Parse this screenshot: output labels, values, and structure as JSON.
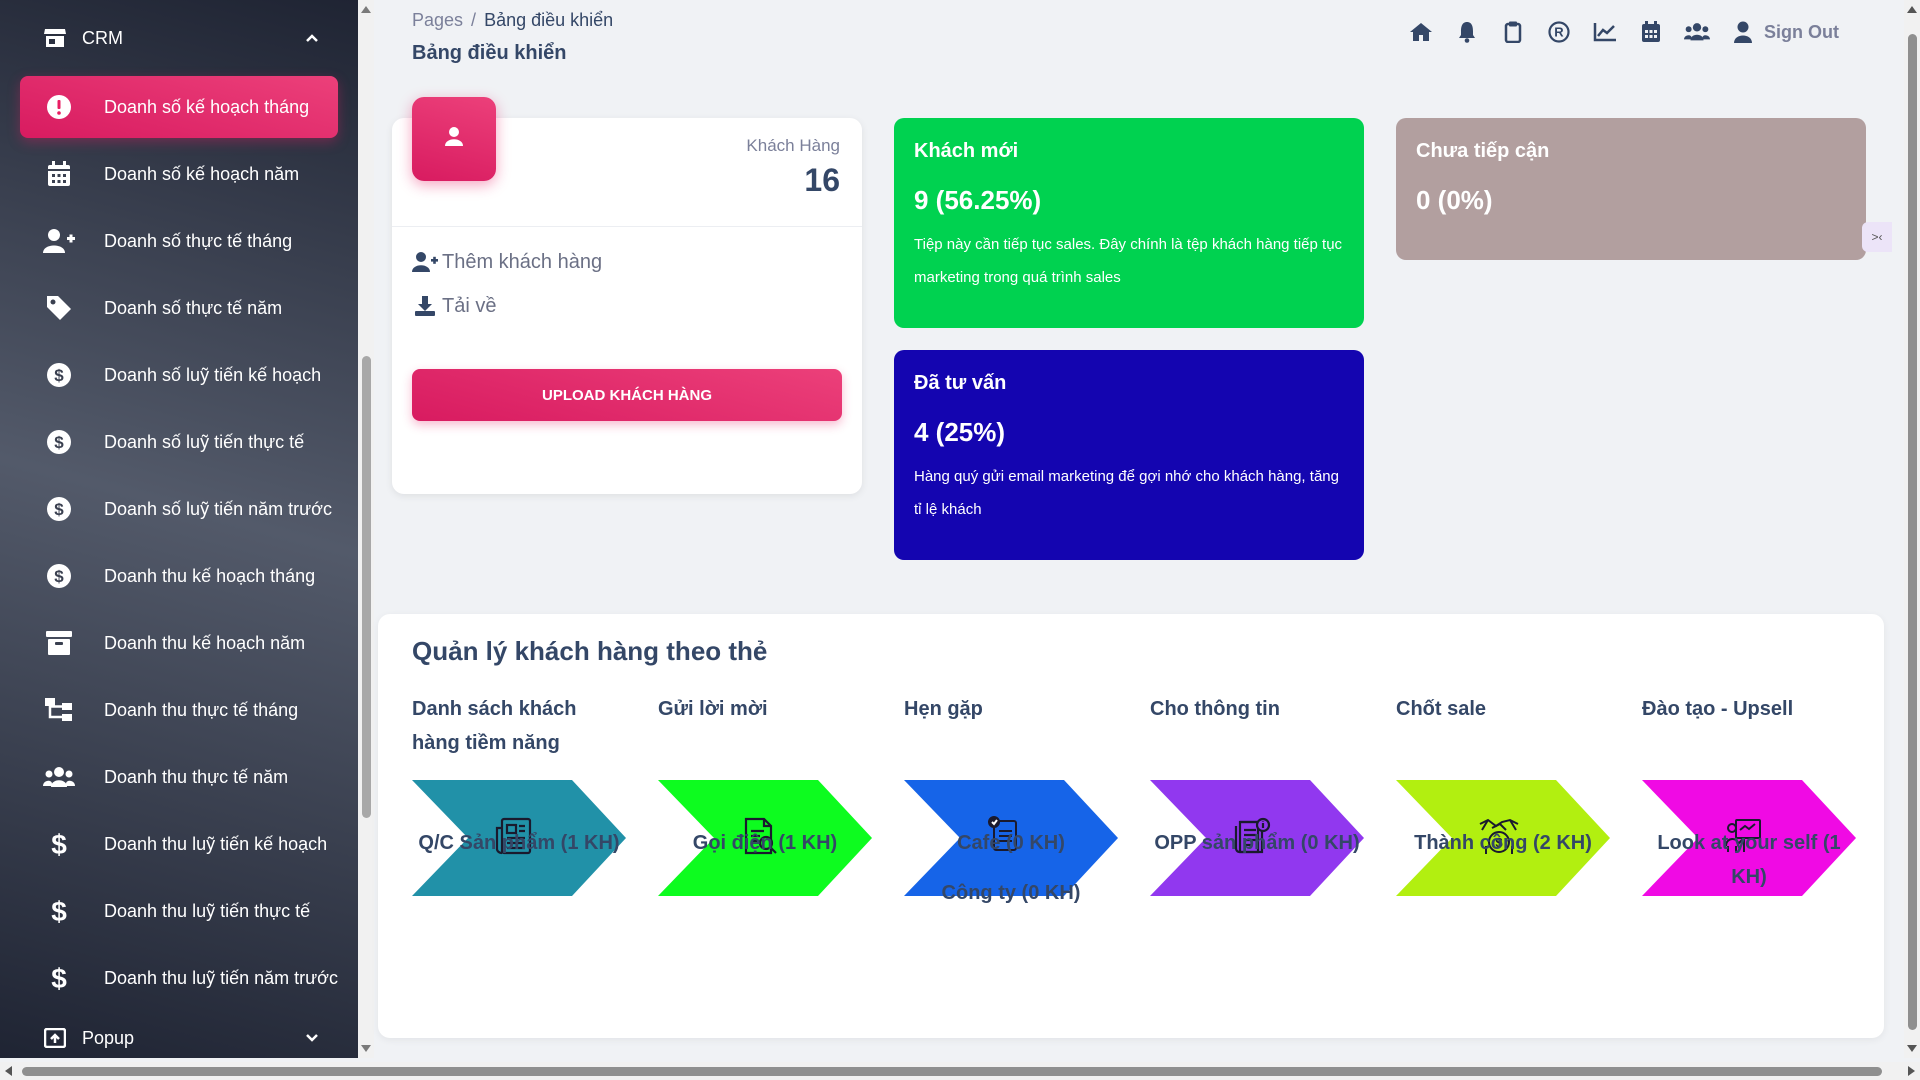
{
  "sidebar": {
    "group_crm": "CRM",
    "group_popup": "Popup",
    "items": [
      {
        "label": "Doanh số kế hoạch tháng",
        "icon": "alert-circle-icon"
      },
      {
        "label": "Doanh số kế hoạch năm",
        "icon": "calendar-icon"
      },
      {
        "label": "Doanh số thực tế tháng",
        "icon": "user-plus-icon"
      },
      {
        "label": "Doanh số thực tế năm",
        "icon": "tag-icon"
      },
      {
        "label": "Doanh số luỹ tiến kế hoạch",
        "icon": "dollar-circle-icon"
      },
      {
        "label": "Doanh số luỹ tiến thực tế",
        "icon": "dollar-circle-icon"
      },
      {
        "label": "Doanh số luỹ tiến năm trước",
        "icon": "dollar-circle-icon"
      },
      {
        "label": "Doanh thu kế hoạch tháng",
        "icon": "dollar-circle-icon"
      },
      {
        "label": "Doanh thu kế hoạch năm",
        "icon": "archive-icon"
      },
      {
        "label": "Doanh thu thực tế tháng",
        "icon": "sitemap-icon"
      },
      {
        "label": "Doanh thu thực tế năm",
        "icon": "users-icon"
      },
      {
        "label": "Doanh thu luỹ tiến kế hoạch",
        "icon": "dollar-icon"
      },
      {
        "label": "Doanh thu luỹ tiến thực tế",
        "icon": "dollar-icon"
      },
      {
        "label": "Doanh thu luỹ tiến năm trước",
        "icon": "dollar-icon"
      }
    ],
    "active_index": 0,
    "active_color": "#e91e63"
  },
  "header": {
    "breadcrumb_root": "Pages",
    "breadcrumb_sep": "/",
    "breadcrumb_current": "Bảng điều khiển",
    "title": "Bảng điều khiển",
    "icons": [
      "home-icon",
      "bell-icon",
      "clipboard-icon",
      "registered-icon",
      "chart-line-icon",
      "calendar-icon",
      "users-icon"
    ],
    "sign_out": "Sign Out"
  },
  "customer_card": {
    "label": "Khách Hàng",
    "count": "16",
    "add_link": "Thêm khách hàng",
    "download_link": "Tải về",
    "upload_button": "UPLOAD KHÁCH HÀNG"
  },
  "stats": {
    "new": {
      "title": "Khách mới",
      "value": "9 (56.25%)",
      "desc": "Tiệp này cần tiếp tục sales. Đây chính là tệp khách hàng tiếp tục marketing trong quá trình sales",
      "color": "#00d250"
    },
    "consulted": {
      "title": "Đã tư vấn",
      "value": "4 (25%)",
      "desc": "Hàng quý gửi email marketing để gợi nhớ cho khách hàng, tăng tỉ lệ khách",
      "color": "#1405b0"
    },
    "not_reached": {
      "title": "Chưa tiếp cận",
      "value": "0 (0%)",
      "color": "#b29f9f"
    },
    "side_tab": ">‹"
  },
  "pipeline": {
    "title": "Quản lý khách hàng theo thẻ",
    "stages": [
      {
        "head": "Danh sách khách hàng tiềm năng",
        "sub": "Q/C Sản phẩm (1 KH)",
        "color": "#2191a8",
        "icon": "newspaper-icon"
      },
      {
        "head": "Gửi lời mời",
        "sub": "Gọi điện (1 KH)",
        "color": "#0dfc1f",
        "icon": "document-search-icon"
      },
      {
        "head": "Hẹn gặp",
        "sub": "Cafe (0 KH)",
        "sub2": "Công ty (0 KH)",
        "color": "#1664e8",
        "icon": "checklist-icon"
      },
      {
        "head": "Cho thông tin",
        "sub": "OPP sản phẩm (0 KH)",
        "color": "#9138ef",
        "icon": "info-document-icon"
      },
      {
        "head": "Chốt sale",
        "sub": "Thành công (2 KH)",
        "color": "#b2ef10",
        "icon": "handshake-money-icon"
      },
      {
        "head": "Đào tạo - Upsell",
        "sub": "Look at your self (1 KH)",
        "color": "#f00ae4",
        "icon": "presentation-icon"
      }
    ]
  }
}
